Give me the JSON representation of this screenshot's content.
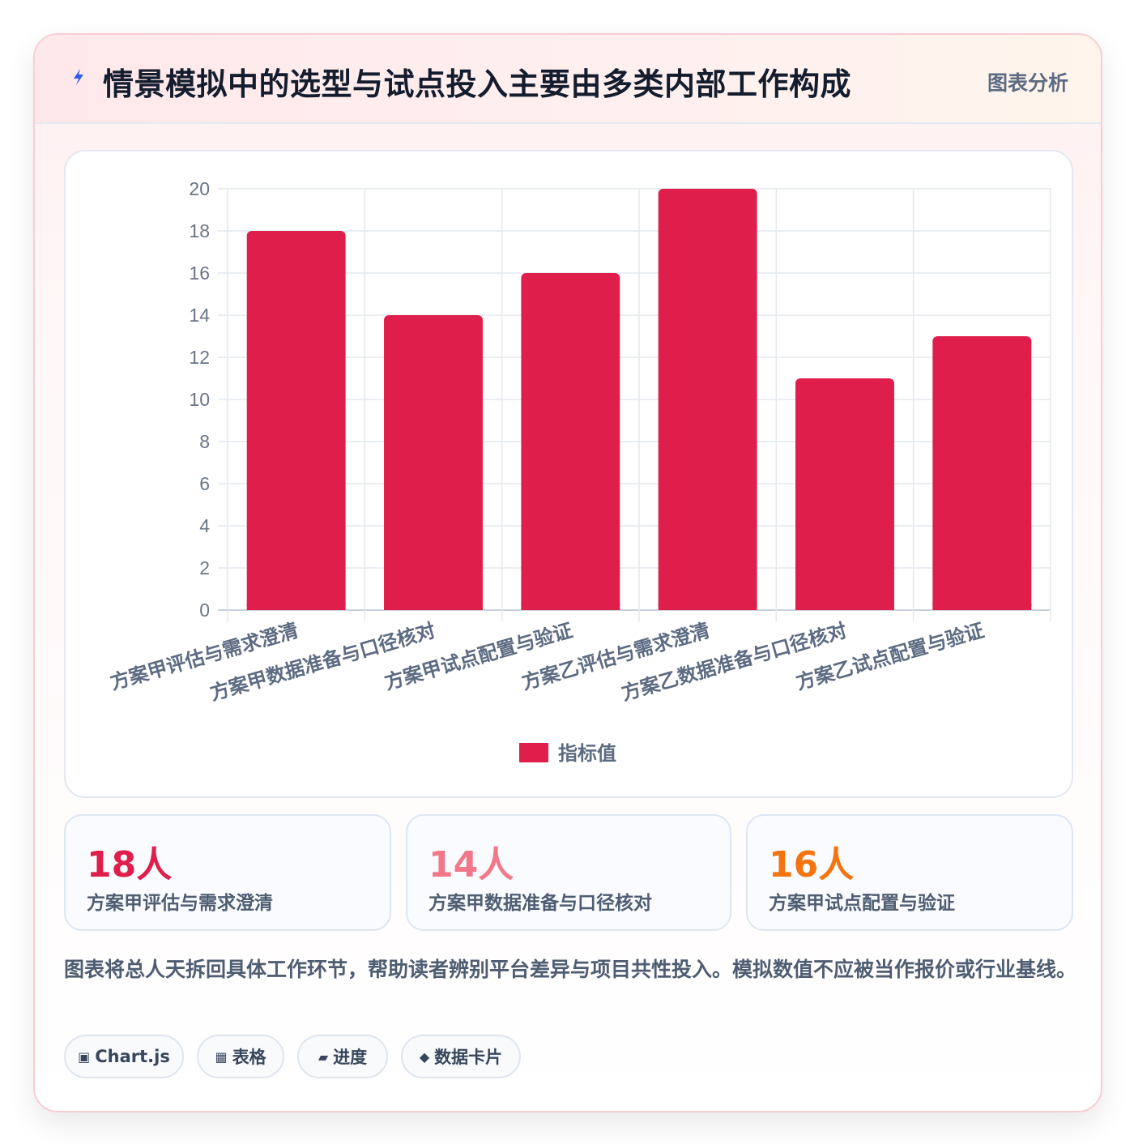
{
  "header": {
    "title": "情景模拟中的选型与试点投入主要由多类内部工作构成",
    "tag": "图表分析",
    "icon": "lightning-icon"
  },
  "chart_data": {
    "type": "bar",
    "categories": [
      "方案甲评估与需求澄清",
      "方案甲数据准备与口径核对",
      "方案甲试点配置与验证",
      "方案乙评估与需求澄清",
      "方案乙数据准备与口径核对",
      "方案乙试点配置与验证"
    ],
    "series": [
      {
        "name": "指标值",
        "values": [
          18,
          14,
          16,
          20,
          11,
          13
        ]
      }
    ],
    "ylim": [
      0,
      20
    ],
    "yticks": [
      0,
      2,
      4,
      6,
      8,
      10,
      12,
      14,
      16,
      18,
      20
    ],
    "grid": true,
    "legend": "bottom",
    "bar_color": "#e01e4b"
  },
  "stats": [
    {
      "value": "18人",
      "label": "方案甲评估与需求澄清",
      "color": "#e01e4b"
    },
    {
      "value": "14人",
      "label": "方案甲数据准备与口径核对",
      "color": "#f27789"
    },
    {
      "value": "16人",
      "label": "方案甲试点配置与验证",
      "color": "#f5740f"
    }
  ],
  "summary": "图表将总人天拆回具体工作环节，帮助读者辨别平台差异与项目共性投入。模拟数值不应被当作报价或行业基线。",
  "chips": [
    {
      "icon": "▣",
      "label": "Chart.js"
    },
    {
      "icon": "▦",
      "label": "表格"
    },
    {
      "icon": "▰",
      "label": "进度"
    },
    {
      "icon": "◆",
      "label": "数据卡片"
    }
  ]
}
